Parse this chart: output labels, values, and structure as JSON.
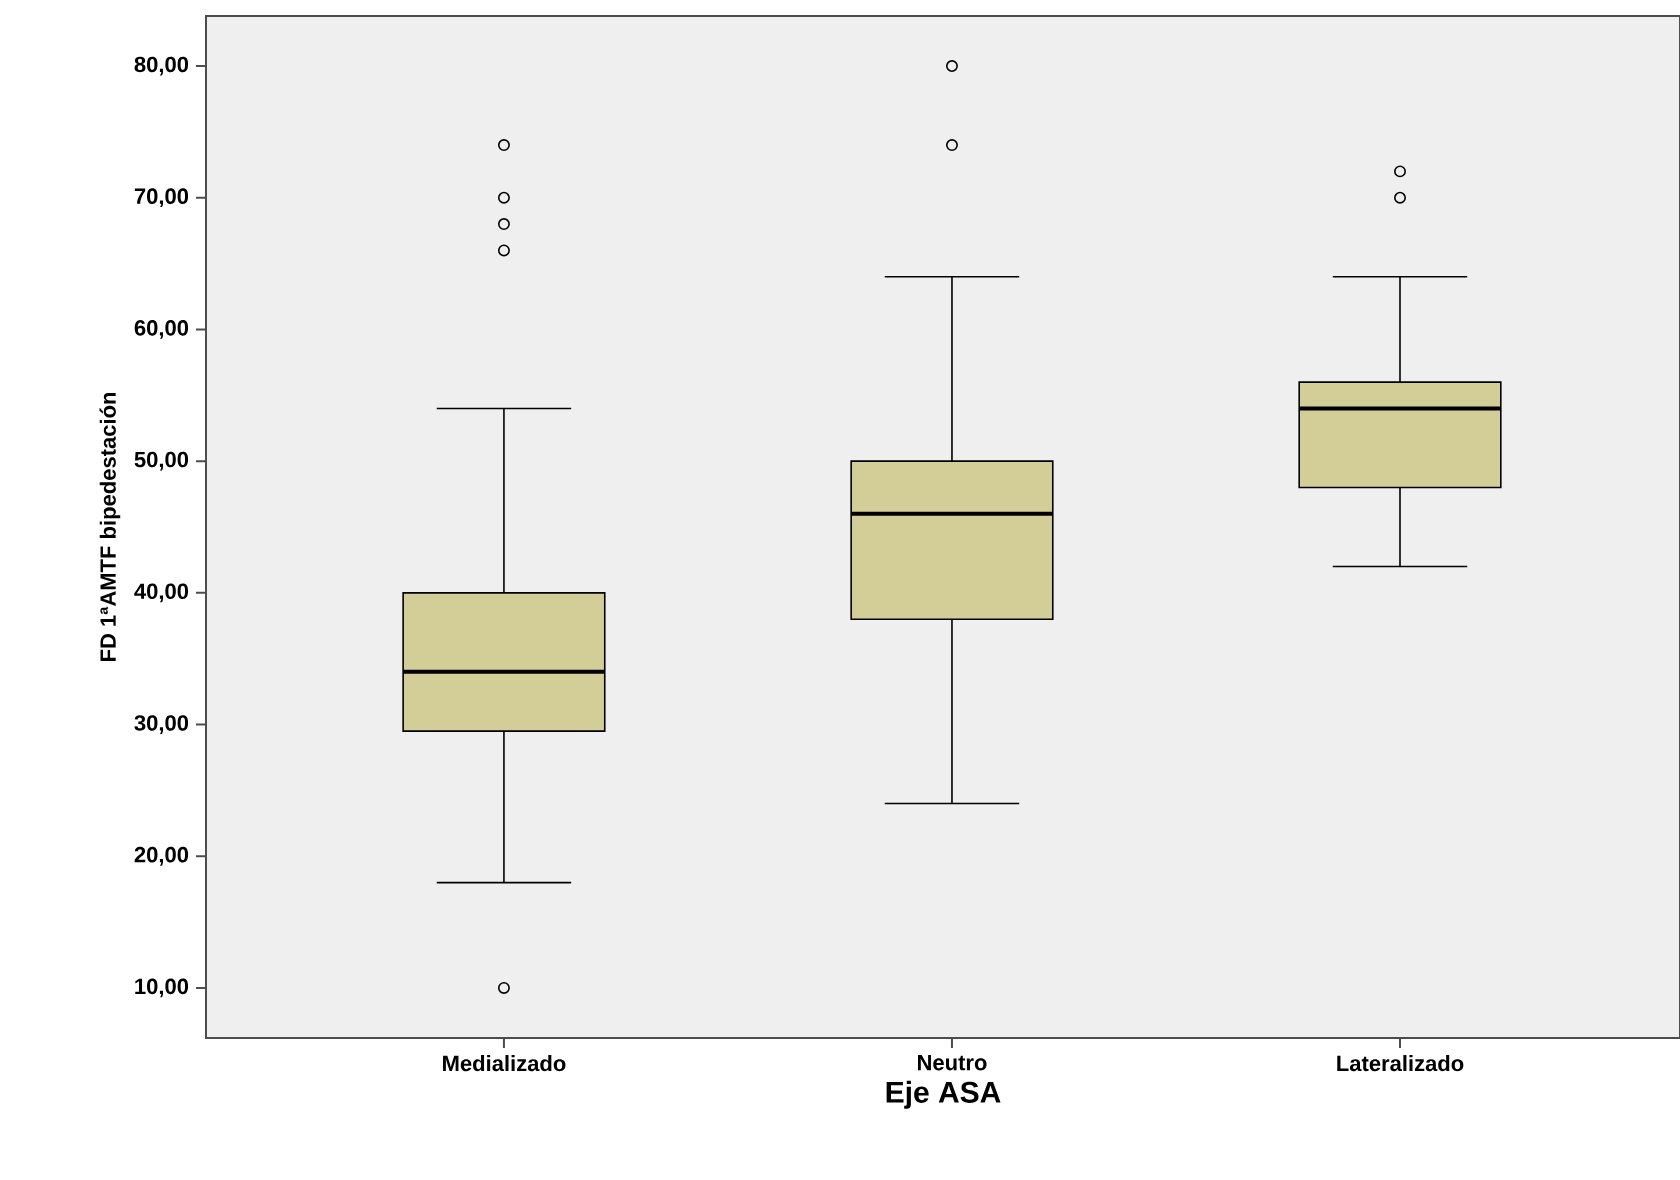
{
  "chart_data": {
    "type": "box",
    "xlabel": "Eje ASA",
    "ylabel": "FD 1ªAMTF bipedestación",
    "categories": [
      "Medializado",
      "Neutro",
      "Lateralizado"
    ],
    "color": "#d3ce97",
    "boxes": [
      {
        "low": 18,
        "q1": 29.5,
        "median": 34,
        "q3": 40,
        "high": 54,
        "outliers": [
          10,
          66,
          68,
          70,
          74
        ]
      },
      {
        "low": 24,
        "q1": 38,
        "median": 46,
        "q3": 50,
        "high": 64,
        "outliers": [
          74,
          80
        ]
      },
      {
        "low": 42,
        "q1": 48,
        "median": 54,
        "q3": 56,
        "high": 64,
        "outliers": [
          70,
          72
        ]
      }
    ],
    "ylim": [
      6.2,
      83.8
    ],
    "yticks": [
      {
        "value": 10,
        "label": "10,00"
      },
      {
        "value": 20,
        "label": "20,00"
      },
      {
        "value": 30,
        "label": "30,00"
      },
      {
        "value": 40,
        "label": "40,00"
      },
      {
        "value": 50,
        "label": "50,00"
      },
      {
        "value": 60,
        "label": "60,00"
      },
      {
        "value": 70,
        "label": "70,00"
      },
      {
        "value": 80,
        "label": "80,00"
      }
    ],
    "grid": false
  }
}
